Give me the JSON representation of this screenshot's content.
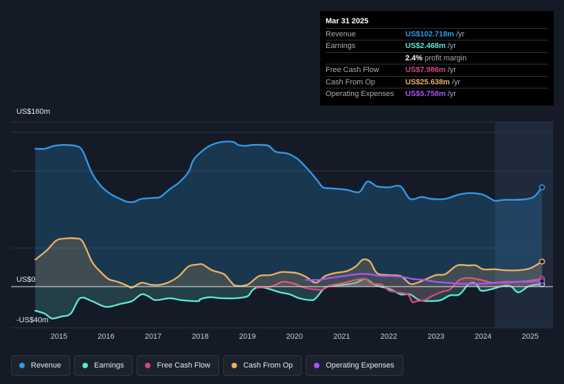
{
  "tooltip": {
    "date": "Mar 31 2025",
    "rows": [
      {
        "label": "Revenue",
        "value": "US$102.718m",
        "unit": "/yr",
        "color": "#2f9bea"
      },
      {
        "label": "Earnings",
        "value": "US$2.468m",
        "unit": "/yr",
        "color": "#5ee8d4"
      },
      {
        "label": "",
        "value": "2.4%",
        "unit": "profit margin",
        "color": "#ffffff"
      },
      {
        "label": "Free Cash Flow",
        "value": "US$7.986m",
        "unit": "/yr",
        "color": "#d4487b"
      },
      {
        "label": "Cash From Op",
        "value": "US$25.638m",
        "unit": "/yr",
        "color": "#e9b062"
      },
      {
        "label": "Operating Expenses",
        "value": "US$5.758m",
        "unit": "/yr",
        "color": "#a855f7"
      }
    ]
  },
  "legend": [
    {
      "label": "Revenue",
      "color": "#2f9bea"
    },
    {
      "label": "Earnings",
      "color": "#5ee8d4"
    },
    {
      "label": "Free Cash Flow",
      "color": "#d4487b"
    },
    {
      "label": "Cash From Op",
      "color": "#e9b062"
    },
    {
      "label": "Operating Expenses",
      "color": "#a855f7"
    }
  ],
  "chart_data": {
    "type": "area",
    "title": "",
    "y_labels": [
      "US$160m",
      "US$0",
      "-US$40m"
    ],
    "ylim": [
      -40,
      160
    ],
    "xlim": [
      2014.45,
      2025.25
    ],
    "x_ticks": [
      "2015",
      "2016",
      "2017",
      "2018",
      "2019",
      "2020",
      "2021",
      "2022",
      "2023",
      "2024",
      "2025"
    ],
    "x_tick_values": [
      2015,
      2016,
      2017,
      2018,
      2019,
      2020,
      2021,
      2022,
      2023,
      2024,
      2025
    ],
    "forecast_start": 2024.25,
    "series": [
      {
        "name": "Revenue",
        "color": "#2f9bea",
        "fill": true,
        "points": [
          [
            2014.5,
            143
          ],
          [
            2014.7,
            143
          ],
          [
            2014.9,
            146
          ],
          [
            2015.1,
            147
          ],
          [
            2015.35,
            146
          ],
          [
            2015.5,
            141
          ],
          [
            2015.7,
            118
          ],
          [
            2015.9,
            104
          ],
          [
            2016.1,
            96
          ],
          [
            2016.3,
            91
          ],
          [
            2016.45,
            88
          ],
          [
            2016.6,
            88
          ],
          [
            2016.75,
            91
          ],
          [
            2017.0,
            92
          ],
          [
            2017.15,
            93
          ],
          [
            2017.35,
            101
          ],
          [
            2017.55,
            108
          ],
          [
            2017.75,
            119
          ],
          [
            2017.85,
            131
          ],
          [
            2018.0,
            139
          ],
          [
            2018.2,
            146
          ],
          [
            2018.45,
            150
          ],
          [
            2018.7,
            150
          ],
          [
            2018.8,
            147
          ],
          [
            2018.95,
            146
          ],
          [
            2019.1,
            147
          ],
          [
            2019.3,
            147
          ],
          [
            2019.45,
            146
          ],
          [
            2019.6,
            140
          ],
          [
            2019.85,
            138
          ],
          [
            2020.05,
            133
          ],
          [
            2020.2,
            126
          ],
          [
            2020.35,
            118
          ],
          [
            2020.5,
            109
          ],
          [
            2020.6,
            103
          ],
          [
            2020.75,
            102
          ],
          [
            2021.0,
            101
          ],
          [
            2021.15,
            100
          ],
          [
            2021.3,
            98
          ],
          [
            2021.4,
            99
          ],
          [
            2021.55,
            109
          ],
          [
            2021.75,
            104
          ],
          [
            2022.0,
            103
          ],
          [
            2022.25,
            104
          ],
          [
            2022.45,
            91
          ],
          [
            2022.7,
            93
          ],
          [
            2022.9,
            91
          ],
          [
            2023.2,
            91
          ],
          [
            2023.45,
            95
          ],
          [
            2023.7,
            97
          ],
          [
            2023.95,
            96
          ],
          [
            2024.1,
            93
          ],
          [
            2024.25,
            89
          ],
          [
            2024.45,
            90
          ],
          [
            2024.7,
            90
          ],
          [
            2024.95,
            91
          ],
          [
            2025.1,
            94
          ],
          [
            2025.25,
            103
          ]
        ]
      },
      {
        "name": "Earnings",
        "color": "#5ee8d4",
        "fill": true,
        "points": [
          [
            2014.5,
            -25
          ],
          [
            2014.7,
            -28
          ],
          [
            2014.85,
            -33
          ],
          [
            2015.05,
            -31
          ],
          [
            2015.25,
            -28
          ],
          [
            2015.45,
            -12
          ],
          [
            2015.7,
            -15
          ],
          [
            2016.0,
            -21
          ],
          [
            2016.3,
            -18
          ],
          [
            2016.55,
            -15
          ],
          [
            2016.75,
            -8
          ],
          [
            2016.9,
            -10
          ],
          [
            2017.05,
            -14
          ],
          [
            2017.35,
            -12
          ],
          [
            2017.6,
            -14
          ],
          [
            2017.95,
            -15
          ],
          [
            2018.0,
            -13
          ],
          [
            2018.2,
            -11
          ],
          [
            2018.45,
            -12
          ],
          [
            2018.75,
            -12
          ],
          [
            2019.0,
            -10
          ],
          [
            2019.1,
            -4
          ],
          [
            2019.2,
            -1
          ],
          [
            2019.35,
            -1
          ],
          [
            2019.5,
            -3
          ],
          [
            2019.7,
            -6
          ],
          [
            2019.9,
            -8
          ],
          [
            2020.1,
            -12
          ],
          [
            2020.35,
            -14
          ],
          [
            2020.45,
            -12
          ],
          [
            2020.65,
            -1
          ],
          [
            2020.85,
            1
          ],
          [
            2021.05,
            2
          ],
          [
            2021.3,
            4
          ],
          [
            2021.5,
            8
          ],
          [
            2021.7,
            2
          ],
          [
            2021.9,
            -1
          ],
          [
            2022.05,
            -3
          ],
          [
            2022.25,
            -8
          ],
          [
            2022.45,
            -8
          ],
          [
            2022.65,
            -14
          ],
          [
            2022.9,
            -15
          ],
          [
            2023.1,
            -14
          ],
          [
            2023.3,
            -9
          ],
          [
            2023.5,
            -8
          ],
          [
            2023.7,
            3
          ],
          [
            2023.85,
            3
          ],
          [
            2023.95,
            -4
          ],
          [
            2024.15,
            -3
          ],
          [
            2024.45,
            1
          ],
          [
            2024.6,
            0
          ],
          [
            2024.75,
            -6
          ],
          [
            2024.95,
            0
          ],
          [
            2025.1,
            2
          ],
          [
            2025.25,
            2.5
          ]
        ]
      },
      {
        "name": "Free Cash Flow",
        "color": "#d4487b",
        "fill": true,
        "points": [
          [
            2019.2,
            -1
          ],
          [
            2019.5,
            0
          ],
          [
            2019.75,
            5
          ],
          [
            2020.0,
            3
          ],
          [
            2020.2,
            -1
          ],
          [
            2020.45,
            -3
          ],
          [
            2020.6,
            -3
          ],
          [
            2020.75,
            1
          ],
          [
            2021.05,
            4
          ],
          [
            2021.3,
            7
          ],
          [
            2021.5,
            8
          ],
          [
            2021.65,
            3
          ],
          [
            2021.85,
            2
          ],
          [
            2022.0,
            -4
          ],
          [
            2022.2,
            -6
          ],
          [
            2022.4,
            -8
          ],
          [
            2022.5,
            -16
          ],
          [
            2022.6,
            -15
          ],
          [
            2022.75,
            -14
          ],
          [
            2022.95,
            -9
          ],
          [
            2023.15,
            -5
          ],
          [
            2023.3,
            -3
          ],
          [
            2023.5,
            7
          ],
          [
            2023.7,
            9
          ],
          [
            2023.95,
            7
          ],
          [
            2024.2,
            4
          ],
          [
            2024.45,
            5
          ],
          [
            2024.7,
            5
          ],
          [
            2024.95,
            6
          ],
          [
            2025.25,
            8
          ]
        ]
      },
      {
        "name": "Cash From Op",
        "color": "#e9b062",
        "fill": true,
        "points": [
          [
            2014.5,
            28
          ],
          [
            2014.75,
            38
          ],
          [
            2014.95,
            48
          ],
          [
            2015.15,
            50
          ],
          [
            2015.35,
            50
          ],
          [
            2015.5,
            47
          ],
          [
            2015.7,
            26
          ],
          [
            2015.85,
            17
          ],
          [
            2016.05,
            8
          ],
          [
            2016.25,
            5
          ],
          [
            2016.45,
            1
          ],
          [
            2016.55,
            -1
          ],
          [
            2016.75,
            4
          ],
          [
            2016.95,
            2
          ],
          [
            2017.15,
            2
          ],
          [
            2017.35,
            5
          ],
          [
            2017.55,
            11
          ],
          [
            2017.75,
            21
          ],
          [
            2017.95,
            23
          ],
          [
            2018.05,
            23
          ],
          [
            2018.25,
            17
          ],
          [
            2018.5,
            13
          ],
          [
            2018.65,
            5
          ],
          [
            2018.75,
            1
          ],
          [
            2019.0,
            2
          ],
          [
            2019.25,
            11
          ],
          [
            2019.5,
            12
          ],
          [
            2019.7,
            15
          ],
          [
            2019.85,
            15
          ],
          [
            2020.05,
            14
          ],
          [
            2020.25,
            10
          ],
          [
            2020.45,
            4
          ],
          [
            2020.65,
            11
          ],
          [
            2020.85,
            14
          ],
          [
            2021.1,
            16
          ],
          [
            2021.3,
            21
          ],
          [
            2021.45,
            28
          ],
          [
            2021.6,
            26
          ],
          [
            2021.75,
            14
          ],
          [
            2022.0,
            12
          ],
          [
            2022.25,
            11
          ],
          [
            2022.45,
            3
          ],
          [
            2022.6,
            4
          ],
          [
            2022.8,
            8
          ],
          [
            2023.0,
            12
          ],
          [
            2023.2,
            13
          ],
          [
            2023.45,
            22
          ],
          [
            2023.7,
            22
          ],
          [
            2023.85,
            22
          ],
          [
            2024.0,
            18
          ],
          [
            2024.25,
            18
          ],
          [
            2024.45,
            17
          ],
          [
            2024.75,
            17
          ],
          [
            2025.0,
            19
          ],
          [
            2025.25,
            26
          ]
        ]
      },
      {
        "name": "Operating Expenses",
        "color": "#a855f7",
        "fill": false,
        "points": [
          [
            2020.25,
            7
          ],
          [
            2020.5,
            7
          ],
          [
            2020.75,
            9
          ],
          [
            2021.05,
            11
          ],
          [
            2021.35,
            13
          ],
          [
            2021.55,
            13
          ],
          [
            2021.7,
            12
          ],
          [
            2021.85,
            11
          ],
          [
            2022.05,
            11
          ],
          [
            2022.3,
            10
          ],
          [
            2022.5,
            8
          ],
          [
            2022.75,
            7
          ],
          [
            2023.0,
            5
          ],
          [
            2023.25,
            4
          ],
          [
            2023.5,
            3
          ],
          [
            2023.75,
            3
          ],
          [
            2024.0,
            3
          ],
          [
            2024.25,
            4
          ],
          [
            2024.5,
            4
          ],
          [
            2024.75,
            5
          ],
          [
            2025.0,
            5
          ],
          [
            2025.25,
            5.8
          ]
        ]
      }
    ]
  }
}
